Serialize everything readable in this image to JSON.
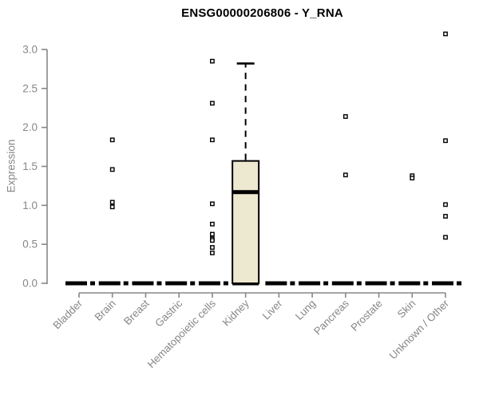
{
  "page": {
    "background": "#ffffff"
  },
  "chart_data": {
    "type": "boxplot",
    "title": "ENSG00000206806 - Y_RNA",
    "ylabel": "Expression",
    "xlabel": "",
    "ylim": [
      0,
      3.3
    ],
    "yticks": [
      "0.0",
      "0.5",
      "1.0",
      "1.5",
      "2.0",
      "2.5",
      "3.0"
    ],
    "grid": false,
    "legend": "none",
    "categories": [
      "Bladder",
      "Brain",
      "Breast",
      "Gastric",
      "Hematopoietic cells",
      "Kidney",
      "Liver",
      "Lung",
      "Pancreas",
      "Prostate",
      "Skin",
      "Unknown / Other"
    ],
    "series": [
      {
        "category": "Bladder",
        "q1": 0,
        "median": 0,
        "q3": 0,
        "whisker_low": 0,
        "whisker_high": 0,
        "outliers": []
      },
      {
        "category": "Brain",
        "q1": 0,
        "median": 0,
        "q3": 0,
        "whisker_low": 0,
        "whisker_high": 0,
        "outliers": [
          1.84,
          1.46,
          1.04,
          0.98
        ]
      },
      {
        "category": "Breast",
        "q1": 0,
        "median": 0,
        "q3": 0,
        "whisker_low": 0,
        "whisker_high": 0,
        "outliers": []
      },
      {
        "category": "Gastric",
        "q1": 0,
        "median": 0,
        "q3": 0,
        "whisker_low": 0,
        "whisker_high": 0,
        "outliers": []
      },
      {
        "category": "Hematopoietic cells",
        "q1": 0,
        "median": 0,
        "q3": 0,
        "whisker_low": 0,
        "whisker_high": 0,
        "outliers": [
          2.85,
          2.31,
          1.84,
          1.02,
          0.76,
          0.63,
          0.57,
          0.55,
          0.46,
          0.39
        ]
      },
      {
        "category": "Kidney",
        "q1": 0,
        "median": 1.17,
        "q3": 1.57,
        "whisker_low": 0,
        "whisker_high": 2.82,
        "outliers": []
      },
      {
        "category": "Liver",
        "q1": 0,
        "median": 0,
        "q3": 0,
        "whisker_low": 0,
        "whisker_high": 0,
        "outliers": []
      },
      {
        "category": "Lung",
        "q1": 0,
        "median": 0,
        "q3": 0,
        "whisker_low": 0,
        "whisker_high": 0,
        "outliers": []
      },
      {
        "category": "Pancreas",
        "q1": 0,
        "median": 0,
        "q3": 0,
        "whisker_low": 0,
        "whisker_high": 0,
        "outliers": [
          2.14,
          1.39
        ]
      },
      {
        "category": "Prostate",
        "q1": 0,
        "median": 0,
        "q3": 0,
        "whisker_low": 0,
        "whisker_high": 0,
        "outliers": []
      },
      {
        "category": "Skin",
        "q1": 0,
        "median": 0,
        "q3": 0,
        "whisker_low": 0,
        "whisker_high": 0,
        "outliers": [
          1.38,
          1.35
        ]
      },
      {
        "category": "Unknown / Other",
        "q1": 0,
        "median": 0,
        "q3": 0,
        "whisker_low": 0,
        "whisker_high": 0,
        "outliers": [
          3.2,
          1.83,
          1.01,
          0.86,
          0.59
        ]
      }
    ],
    "colors": {
      "box_fill": "#EDE8D0",
      "box_border": "#000000",
      "median": "#000000",
      "axis": "#878787",
      "tick_label": "#878787",
      "title": "#000000",
      "outlier_fill": "#ffffff",
      "outlier_border": "#000000"
    }
  }
}
